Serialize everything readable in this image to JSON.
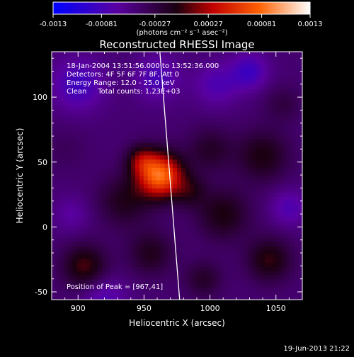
{
  "chart_data": {
    "type": "heatmap",
    "title": "Reconstructed RHESSI Image",
    "xlabel": "Heliocentric X (arcsec)",
    "ylabel": "Heliocentric Y (arcsec)",
    "xlim": [
      880,
      1070
    ],
    "ylim": [
      -56,
      135
    ],
    "x_ticks": [
      900,
      950,
      1000,
      1050
    ],
    "y_ticks": [
      -50,
      0,
      50,
      100
    ],
    "colorbar": {
      "range": [
        -0.0013,
        0.0013
      ],
      "tick_values": [
        -0.0013,
        -0.00081,
        -0.00027,
        0.00027,
        0.00081,
        0.0013
      ],
      "tick_labels": [
        "-0.0013",
        "-0.00081",
        "-0.00027",
        "0.00027",
        "0.00081",
        "0.0013"
      ],
      "unit_label": "(photons cm⁻² s⁻¹ asec⁻²)",
      "colors": [
        "#0000ff",
        "#5a00a0",
        "#1a0010",
        "#c00000",
        "#ff6000",
        "#ffffff"
      ]
    },
    "info_lines": [
      "18-Jan-2004 13:51:56.000 to 13:52:36.000",
      "Detectors: 4F 5F 6F 7F 8F, Att 0",
      "Energy Range: 12.0 - 25.0 keV",
      "Clean     Total counts: 1.23E+03"
    ],
    "peak_label": "Position of Peak = [967,41]",
    "peak": [
      967,
      41
    ],
    "limb_line": {
      "x": [
        962,
        977
      ],
      "y": [
        135,
        -56
      ]
    },
    "sources": [
      {
        "x": 962,
        "y": 40,
        "sigma": 12,
        "amp": 0.00125
      },
      {
        "x": 948,
        "y": 52,
        "sigma": 8,
        "amp": 0.00045
      },
      {
        "x": 985,
        "y": 28,
        "sigma": 9,
        "amp": 0.0003
      },
      {
        "x": 935,
        "y": 20,
        "sigma": 14,
        "amp": 0.00035
      },
      {
        "x": 1000,
        "y": 60,
        "sigma": 12,
        "amp": 0.0003
      },
      {
        "x": 1040,
        "y": 55,
        "sigma": 14,
        "amp": 0.0004
      },
      {
        "x": 1010,
        "y": 10,
        "sigma": 14,
        "amp": 0.0004
      },
      {
        "x": 905,
        "y": -30,
        "sigma": 12,
        "amp": 0.0005
      },
      {
        "x": 955,
        "y": -20,
        "sigma": 12,
        "amp": 0.00035
      },
      {
        "x": 995,
        "y": -40,
        "sigma": 10,
        "amp": 0.0003
      },
      {
        "x": 1045,
        "y": -25,
        "sigma": 12,
        "amp": 0.00045
      },
      {
        "x": 1055,
        "y": 95,
        "sigma": 10,
        "amp": 0.0002
      },
      {
        "x": 890,
        "y": 60,
        "sigma": 12,
        "amp": 0.0001
      },
      {
        "x": 1030,
        "y": 120,
        "sigma": 10,
        "amp": -0.0004
      },
      {
        "x": 900,
        "y": 110,
        "sigma": 14,
        "amp": -0.0004
      },
      {
        "x": 960,
        "y": 115,
        "sigma": 12,
        "amp": -0.00035
      },
      {
        "x": 1060,
        "y": 15,
        "sigma": 10,
        "amp": -0.0003
      },
      {
        "x": 920,
        "y": -55,
        "sigma": 12,
        "amp": -0.0003
      },
      {
        "x": 1005,
        "y": 110,
        "sigma": 12,
        "amp": -0.0003
      },
      {
        "x": 895,
        "y": 10,
        "sigma": 10,
        "amp": -0.0002
      }
    ],
    "background": -0.00045
  },
  "footer_timestamp": "19-Jun-2013 21:22"
}
